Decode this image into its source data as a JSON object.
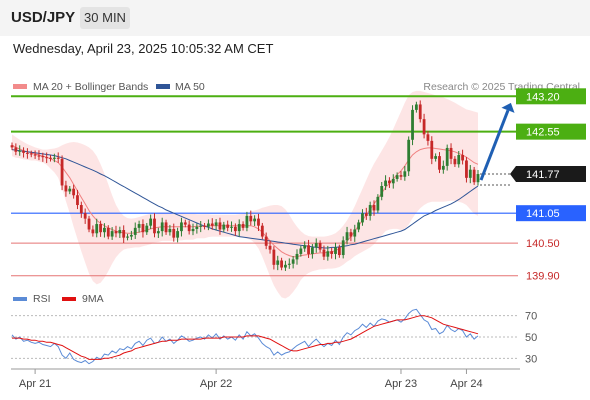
{
  "header": {
    "symbol": "USD/JPY",
    "timeframe": "30 MIN"
  },
  "datetime": "Wednesday, April 23, 2025 10:05:32 AM CET",
  "legend": {
    "items": [
      {
        "label": "MA 20 + Bollinger Bands",
        "color": "#f28b8b"
      },
      {
        "label": "MA 50",
        "color": "#2f5597"
      }
    ],
    "credit": "Research © 2025 Trading Central"
  },
  "colors": {
    "up": "#2e7d32",
    "down": "#c62828",
    "resistance": "#4caf12",
    "support": "#2962ff",
    "band_fill": "#fde0e0",
    "ma20": "#f08080",
    "ma50": "#2f5597",
    "arrow": "#1f5fb3",
    "rsi": "#5b8bd6",
    "rsi_ma": "#e01010"
  },
  "chart_data": [
    {
      "type": "candlestick",
      "ylim": [
        139.6,
        143.5
      ],
      "x_ticks": [
        "Apr 21",
        "Apr 22",
        "Apr 23",
        "Apr 24"
      ],
      "levels": [
        {
          "value": 143.2,
          "label": "143.20",
          "kind": "resistance"
        },
        {
          "value": 142.55,
          "label": "142.55",
          "kind": "resistance"
        },
        {
          "value": 141.77,
          "label": "141.77",
          "kind": "last"
        },
        {
          "value": 141.05,
          "label": "141.05",
          "kind": "pivot"
        },
        {
          "value": 140.5,
          "label": "140.50",
          "kind": "support"
        },
        {
          "value": 139.9,
          "label": "139.90",
          "kind": "support"
        }
      ],
      "close": [
        142.26,
        142.18,
        142.2,
        142.16,
        142.15,
        142.13,
        142.11,
        142.1,
        142.08,
        142.07,
        142.05,
        142.07,
        142.05,
        141.56,
        141.45,
        141.5,
        141.38,
        141.2,
        141.05,
        140.95,
        140.75,
        140.68,
        140.85,
        140.7,
        140.78,
        140.62,
        140.72,
        140.68,
        140.74,
        140.6,
        140.62,
        140.65,
        140.78,
        140.85,
        140.7,
        140.82,
        140.95,
        140.68,
        140.72,
        140.88,
        140.7,
        140.76,
        140.6,
        140.72,
        140.88,
        140.84,
        140.72,
        140.76,
        140.8,
        140.82,
        140.8,
        140.86,
        140.82,
        140.88,
        140.75,
        140.84,
        140.78,
        140.8,
        140.72,
        140.85,
        140.78,
        141.0,
        140.9,
        140.95,
        140.82,
        140.62,
        140.45,
        140.38,
        140.1,
        140.18,
        140.05,
        140.1,
        140.12,
        140.2,
        140.3,
        140.4,
        140.46,
        140.3,
        140.42,
        140.5,
        140.38,
        140.25,
        140.35,
        140.3,
        140.42,
        140.28,
        140.55,
        140.7,
        140.62,
        140.75,
        140.88,
        141.05,
        141.0,
        141.2,
        141.1,
        141.35,
        141.55,
        141.65,
        141.6,
        141.68,
        141.75,
        141.72,
        141.82,
        142.4,
        142.95,
        143.05,
        142.78,
        142.5,
        142.38,
        142.05,
        142.1,
        141.85,
        141.92,
        142.25,
        142.05,
        141.95,
        142.12,
        142.02,
        141.7,
        141.85,
        141.62,
        141.77
      ],
      "ma20": [
        142.3,
        142.26,
        142.23,
        142.2,
        142.18,
        142.16,
        142.14,
        142.12,
        142.1,
        142.08,
        142.05,
        142.02,
        141.98,
        141.9,
        141.8,
        141.7,
        141.58,
        141.46,
        141.34,
        141.22,
        141.1,
        141.0,
        140.92,
        140.86,
        140.82,
        140.78,
        140.75,
        140.72,
        140.7,
        140.69,
        140.68,
        140.68,
        140.69,
        140.7,
        140.72,
        140.74,
        140.76,
        140.78,
        140.79,
        140.8,
        140.8,
        140.8,
        140.8,
        140.8,
        140.8,
        140.8,
        140.8,
        140.8,
        140.81,
        140.81,
        140.81,
        140.82,
        140.82,
        140.82,
        140.82,
        140.82,
        140.82,
        140.82,
        140.82,
        140.82,
        140.82,
        140.82,
        140.82,
        140.8,
        140.76,
        140.7,
        140.62,
        140.54,
        140.46,
        140.4,
        140.34,
        140.3,
        140.27,
        140.25,
        140.25,
        140.27,
        140.28,
        140.29,
        140.3,
        140.31,
        140.32,
        140.32,
        140.33,
        140.34,
        140.36,
        140.4,
        140.46,
        140.54,
        140.62,
        140.72,
        140.82,
        140.92,
        141.02,
        141.12,
        141.22,
        141.32,
        141.42,
        141.52,
        141.6,
        141.68,
        141.76,
        141.83,
        141.92,
        142.03,
        142.12,
        142.18,
        142.22,
        142.24,
        142.25,
        142.25,
        142.24,
        142.23,
        142.22,
        142.21,
        142.2,
        142.18,
        142.15,
        142.12,
        142.08,
        142.03,
        141.98,
        141.95
      ],
      "bb_upper": [
        142.5,
        142.45,
        142.4,
        142.36,
        142.32,
        142.29,
        142.26,
        142.24,
        142.22,
        142.22,
        142.23,
        142.24,
        142.26,
        142.3,
        142.33,
        142.35,
        142.36,
        142.35,
        142.33,
        142.3,
        142.26,
        142.2,
        142.1,
        141.95,
        141.78,
        141.58,
        141.38,
        141.2,
        141.08,
        141.0,
        140.96,
        140.95,
        140.96,
        140.98,
        141.0,
        141.02,
        141.04,
        141.05,
        141.06,
        141.06,
        141.06,
        141.06,
        141.06,
        141.05,
        141.05,
        141.04,
        141.04,
        141.04,
        141.03,
        141.03,
        141.03,
        141.03,
        141.02,
        141.02,
        141.02,
        141.02,
        141.02,
        141.02,
        141.02,
        141.03,
        141.04,
        141.06,
        141.08,
        141.1,
        141.12,
        141.15,
        141.17,
        141.19,
        141.2,
        141.2,
        141.18,
        141.12,
        141.02,
        140.9,
        140.8,
        140.72,
        140.66,
        140.63,
        140.62,
        140.62,
        140.62,
        140.62,
        140.63,
        140.65,
        140.68,
        140.74,
        140.82,
        140.92,
        141.04,
        141.18,
        141.34,
        141.5,
        141.66,
        141.82,
        141.96,
        142.08,
        142.2,
        142.32,
        142.45,
        142.6,
        142.76,
        142.92,
        143.08,
        143.22,
        143.28,
        143.3,
        143.3,
        143.28,
        143.26,
        143.24,
        143.22,
        143.2,
        143.18,
        143.15,
        143.12,
        143.08,
        143.04,
        143.0,
        142.96,
        142.94,
        142.92,
        142.9
      ],
      "bb_lower": [
        142.1,
        142.07,
        142.06,
        142.04,
        142.03,
        142.02,
        142.02,
        142.0,
        141.98,
        141.94,
        141.87,
        141.8,
        141.7,
        141.5,
        141.27,
        141.05,
        140.8,
        140.57,
        140.35,
        140.14,
        139.94,
        139.8,
        139.74,
        139.77,
        139.86,
        139.98,
        140.12,
        140.24,
        140.32,
        140.38,
        140.4,
        140.41,
        140.42,
        140.42,
        140.44,
        140.46,
        140.48,
        140.51,
        140.52,
        140.54,
        140.54,
        140.54,
        140.54,
        140.55,
        140.55,
        140.56,
        140.56,
        140.56,
        140.59,
        140.59,
        140.59,
        140.61,
        140.62,
        140.62,
        140.62,
        140.62,
        140.62,
        140.62,
        140.62,
        140.61,
        140.6,
        140.58,
        140.56,
        140.5,
        140.4,
        140.25,
        140.07,
        139.89,
        139.72,
        139.6,
        139.5,
        139.48,
        139.52,
        139.6,
        139.7,
        139.82,
        139.9,
        139.95,
        139.98,
        140.0,
        140.02,
        140.02,
        140.03,
        140.03,
        140.04,
        140.06,
        140.1,
        140.16,
        140.2,
        140.26,
        140.3,
        140.34,
        140.38,
        140.42,
        140.48,
        140.56,
        140.64,
        140.72,
        140.75,
        140.76,
        140.76,
        140.74,
        140.76,
        140.84,
        140.96,
        141.06,
        141.14,
        141.2,
        141.24,
        141.26,
        141.26,
        141.26,
        141.26,
        141.27,
        141.28,
        141.28,
        141.26,
        141.24,
        141.2,
        141.12,
        141.04,
        141.0
      ],
      "ma50": [
        142.22,
        142.21,
        142.2,
        142.19,
        142.18,
        142.17,
        142.16,
        142.15,
        142.14,
        142.13,
        142.12,
        142.11,
        142.09,
        142.07,
        142.05,
        142.02,
        141.99,
        141.96,
        141.93,
        141.9,
        141.87,
        141.84,
        141.81,
        141.77,
        141.74,
        141.7,
        141.66,
        141.62,
        141.58,
        141.54,
        141.5,
        141.46,
        141.42,
        141.38,
        141.34,
        141.3,
        141.26,
        141.22,
        141.18,
        141.15,
        141.11,
        141.08,
        141.05,
        141.02,
        140.99,
        140.96,
        140.93,
        140.9,
        140.87,
        140.84,
        140.81,
        140.79,
        140.76,
        140.74,
        140.72,
        140.7,
        140.68,
        140.66,
        140.64,
        140.62,
        140.61,
        140.6,
        140.59,
        140.58,
        140.57,
        140.56,
        140.55,
        140.54,
        140.53,
        140.52,
        140.51,
        140.5,
        140.49,
        140.48,
        140.47,
        140.46,
        140.45,
        140.44,
        140.43,
        140.42,
        140.42,
        140.41,
        140.41,
        140.42,
        140.42,
        140.43,
        140.44,
        140.45,
        140.47,
        140.48,
        140.5,
        140.52,
        140.54,
        140.56,
        140.58,
        140.6,
        140.62,
        140.64,
        140.66,
        140.68,
        140.7,
        140.72,
        140.75,
        140.8,
        140.85,
        140.9,
        140.95,
        141.0,
        141.03,
        141.06,
        141.1,
        141.13,
        141.16,
        141.19,
        141.22,
        141.26,
        141.3,
        141.35,
        141.4,
        141.45,
        141.5,
        141.55
      ],
      "forecast_arrow": {
        "from": 141.77,
        "to": 143.2
      }
    },
    {
      "type": "line",
      "legend": [
        {
          "label": "RSI",
          "color": "#5b8bd6"
        },
        {
          "label": "9MA",
          "color": "#e01010"
        }
      ],
      "ylim": [
        20,
        80
      ],
      "y_ticks": [
        70,
        50,
        30
      ],
      "series": [
        {
          "name": "RSI",
          "values": [
            52,
            48,
            50,
            46,
            47,
            45,
            44,
            45,
            43,
            42,
            41,
            44,
            41,
            33,
            30,
            35,
            29,
            27,
            26,
            28,
            25,
            27,
            31,
            29,
            34,
            33,
            37,
            35,
            39,
            38,
            41,
            39,
            44,
            46,
            42,
            47,
            49,
            44,
            45,
            50,
            46,
            48,
            44,
            47,
            51,
            49,
            46,
            47,
            49,
            50,
            48,
            52,
            49,
            53,
            48,
            51,
            48,
            50,
            47,
            52,
            48,
            55,
            51,
            53,
            49,
            44,
            41,
            39,
            33,
            36,
            33,
            35,
            36,
            39,
            42,
            44,
            46,
            41,
            45,
            48,
            44,
            41,
            44,
            42,
            47,
            43,
            50,
            54,
            52,
            56,
            58,
            62,
            59,
            63,
            60,
            65,
            67,
            66,
            64,
            65,
            66,
            64,
            67,
            72,
            75,
            76,
            71,
            66,
            64,
            57,
            58,
            53,
            55,
            61,
            57,
            55,
            58,
            56,
            50,
            53,
            48,
            51
          ]
        },
        {
          "name": "9MA",
          "values": [
            49,
            49,
            49,
            48,
            48,
            47,
            47,
            46,
            46,
            45,
            45,
            44,
            43,
            42,
            40,
            38,
            36,
            34,
            32,
            31,
            29,
            29,
            29,
            29,
            30,
            30,
            31,
            32,
            33,
            35,
            36,
            37,
            39,
            40,
            41,
            42,
            43,
            44,
            45,
            46,
            46,
            47,
            47,
            47,
            48,
            48,
            48,
            48,
            48,
            48,
            49,
            49,
            49,
            49,
            49,
            50,
            50,
            50,
            50,
            50,
            50,
            51,
            51,
            51,
            51,
            50,
            49,
            48,
            46,
            44,
            42,
            40,
            38,
            37,
            37,
            38,
            39,
            40,
            41,
            42,
            43,
            43,
            44,
            44,
            45,
            45,
            46,
            47,
            48,
            50,
            52,
            54,
            56,
            58,
            60,
            61,
            62,
            63,
            64,
            65,
            66,
            66,
            66,
            67,
            68,
            69,
            70,
            70,
            69,
            68,
            66,
            64,
            62,
            61,
            60,
            59,
            58,
            57,
            56,
            55,
            54,
            53
          ]
        }
      ]
    }
  ]
}
